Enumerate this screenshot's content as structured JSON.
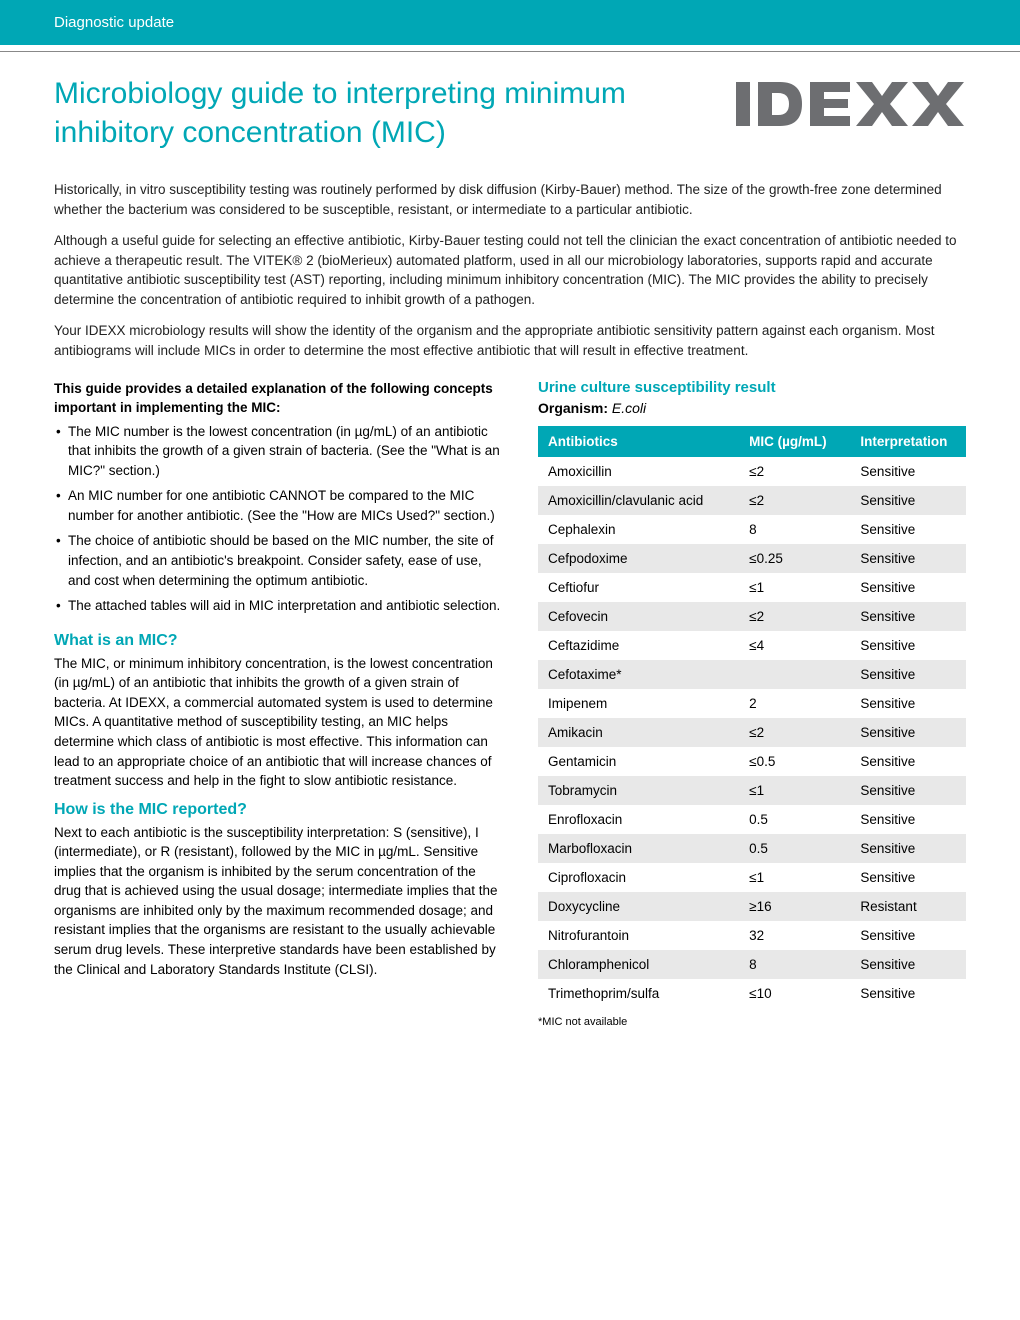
{
  "banner": "Diagnostic update",
  "title": "Microbiology guide to interpreting minimum inhibitory concentration (MIC)",
  "logo_text": "IDEXX",
  "logo_color": "#6d6e71",
  "accent": "#00a7b5",
  "intro": [
    "Historically, in vitro susceptibility testing was routinely performed by disk diffusion (Kirby-Bauer) method. The size of the growth-free zone determined whether the bacterium was considered to be susceptible, resistant, or intermediate to a particular antibiotic.",
    "Although a useful guide for selecting an effective antibiotic, Kirby-Bauer testing could not tell the clinician the exact concentration of antibiotic needed to achieve a therapeutic result. The VITEK® 2 (bioMerieux) automated platform, used in all our microbiology laboratories, supports rapid and accurate quantitative antibiotic susceptibility test (AST) reporting, including minimum inhibitory concentration (MIC). The MIC provides the ability to precisely determine the concentration of antibiotic required to inhibit growth of a pathogen.",
    "Your IDEXX microbiology results will show the identity of the organism and the appropriate antibiotic sensitivity pattern against each organism. Most antibiograms will include MICs in order to determine the most effective antibiotic that will result in effective treatment."
  ],
  "guide_intro": "This guide provides a detailed explanation of the following concepts important in implementing the MIC:",
  "bullets": [
    "The MIC number is the lowest concentration (in µg/mL) of an antibiotic that inhibits the growth of a given strain of bacteria. (See the \"What is an MIC?\" section.)",
    "An MIC number for one antibiotic CANNOT be compared to the MIC number for another antibiotic. (See the \"How are MICs Used?\" section.)",
    "The choice of antibiotic should be based on the MIC number, the site of infection, and an antibiotic's breakpoint. Consider safety, ease of use, and cost when determining the optimum antibiotic.",
    "The attached tables will aid in MIC interpretation and antibiotic selection."
  ],
  "sections": [
    {
      "h": "What is an MIC?",
      "p": "The MIC, or minimum inhibitory concentration, is the lowest concentration (in µg/mL) of an antibiotic that inhibits the growth of a given strain of bacteria. At IDEXX, a commercial automated system is used to determine MICs. A quantitative method of susceptibility testing, an MIC helps determine which class of antibiotic is most effective. This information can lead to an appropriate choice of an antibiotic that will increase chances of treatment success and help in the fight to slow antibiotic resistance."
    },
    {
      "h": "How is the MIC reported?",
      "p": "Next to each antibiotic is the susceptibility interpretation: S (sensitive), I (intermediate), or R (resistant), followed by the MIC in µg/mL. Sensitive implies that the organism is inhibited by the serum concentration of the drug that is achieved using the usual dosage; intermediate implies that the organisms are inhibited only by the maximum recommended dosage; and resistant implies that the organisms are resistant to the usually achievable serum drug levels. These interpretive standards have been established by the Clinical and Laboratory Standards Institute (CLSI)."
    }
  ],
  "result_title": "Urine culture susceptibility result",
  "organism_label": "Organism:",
  "organism_value": "E.coli",
  "table": {
    "columns": [
      "Antibiotics",
      "MIC (µg/mL)",
      "Interpretation"
    ],
    "rows": [
      [
        "Amoxicillin",
        "≤2",
        "Sensitive"
      ],
      [
        "Amoxicillin/clavulanic acid",
        "≤2",
        "Sensitive"
      ],
      [
        "Cephalexin",
        "8",
        "Sensitive"
      ],
      [
        "Cefpodoxime",
        "≤0.25",
        "Sensitive"
      ],
      [
        "Ceftiofur",
        "≤1",
        "Sensitive"
      ],
      [
        "Cefovecin",
        "≤2",
        "Sensitive"
      ],
      [
        "Ceftazidime",
        "≤4",
        "Sensitive"
      ],
      [
        "Cefotaxime*",
        "",
        "Sensitive"
      ],
      [
        "Imipenem",
        "2",
        "Sensitive"
      ],
      [
        "Amikacin",
        "≤2",
        "Sensitive"
      ],
      [
        "Gentamicin",
        "≤0.5",
        "Sensitive"
      ],
      [
        "Tobramycin",
        "≤1",
        "Sensitive"
      ],
      [
        "Enrofloxacin",
        "0.5",
        "Sensitive"
      ],
      [
        "Marbofloxacin",
        "0.5",
        "Sensitive"
      ],
      [
        "Ciprofloxacin",
        "≤1",
        "Sensitive"
      ],
      [
        "Doxycycline",
        "≥16",
        "Resistant"
      ],
      [
        "Nitrofurantoin",
        "32",
        "Sensitive"
      ],
      [
        "Chloramphenicol",
        "8",
        "Sensitive"
      ],
      [
        "Trimethoprim/sulfa",
        "≤10",
        "Sensitive"
      ]
    ],
    "header_bg": "#00a7b5",
    "alt_row_bg": "#e8e8e8",
    "col_widths_pct": [
      47,
      26,
      27
    ]
  },
  "footnote": "*MIC not available"
}
